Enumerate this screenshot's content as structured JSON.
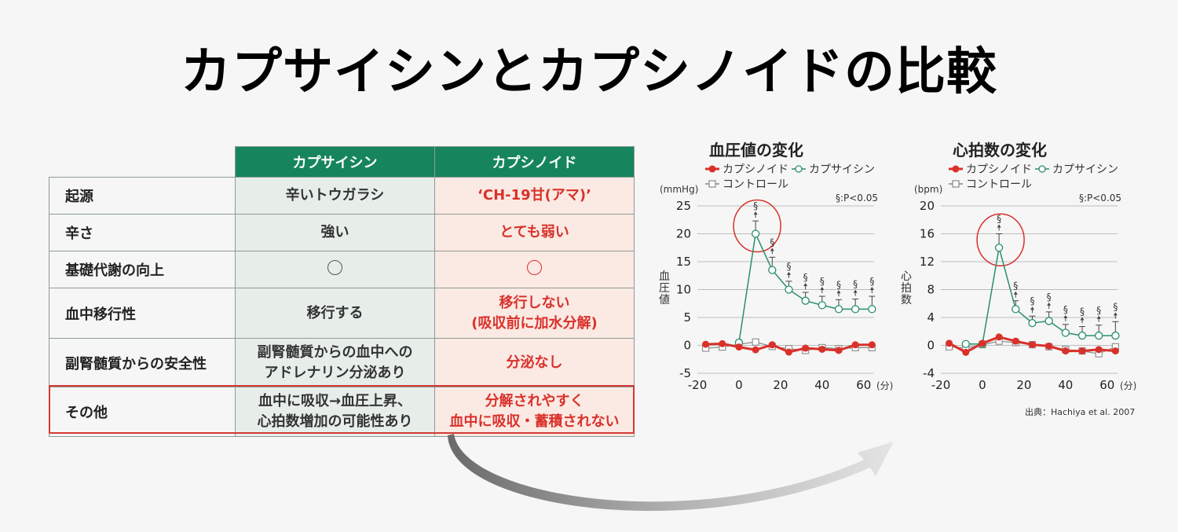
{
  "title": "カプサイシンとカプシノイドの比較",
  "table": {
    "headers": [
      "カプサイシン",
      "カプシノイド"
    ],
    "rows": [
      {
        "label": "起源",
        "c1": [
          "辛いトウガラシ"
        ],
        "c2": [
          "‘CH-19甘(アマ)’"
        ]
      },
      {
        "label": "辛さ",
        "c1": [
          "強い"
        ],
        "c2": [
          "とても弱い"
        ]
      },
      {
        "label": "基礎代謝の向上",
        "c1": [
          "○"
        ],
        "c2": [
          "○"
        ]
      },
      {
        "label": "血中移行性",
        "c1": [
          "移行する"
        ],
        "c2": [
          "移行しない",
          "(吸収前に加水分解)"
        ]
      },
      {
        "label": "副腎髄質からの安全性",
        "c1": [
          "副腎髄質からの血中への",
          "アドレナリン分泌あり"
        ],
        "c2": [
          "分泌なし"
        ]
      },
      {
        "label": "その他",
        "c1": [
          "血中に吸収→血圧上昇、",
          "心拍数増加の可能性あり"
        ],
        "c2": [
          "分解されやすく",
          "血中に吸収・蓄積されない"
        ]
      }
    ]
  },
  "source": "出典：Hachiya et al. 2007",
  "colors": {
    "capsinoid": "#d9312a",
    "capsaicin": "#2a8f6a",
    "control": "#888888",
    "header": "#16855d"
  },
  "chart_data": [
    {
      "type": "line",
      "title": "血圧値の変化",
      "ylabel": "血圧値",
      "yunit": "(mmHg)",
      "xunit": "(分)",
      "note": "§:P<0.05",
      "ylim": [
        -5,
        25
      ],
      "yticks": [
        -5,
        0,
        5,
        10,
        15,
        20,
        25
      ],
      "xlim": [
        -20,
        65
      ],
      "xticks": [
        -20,
        0,
        20,
        40,
        60
      ],
      "grid": true,
      "legend": [
        "カプシノイド",
        "カプサイシン",
        "コントロール"
      ],
      "series": [
        {
          "name": "カプシノイド",
          "x": [
            -16,
            -8,
            0,
            8,
            16,
            24,
            32,
            40,
            48,
            56,
            64
          ],
          "y": [
            0.2,
            0.3,
            -0.3,
            -0.8,
            0.1,
            -1.2,
            -0.5,
            -0.7,
            -0.9,
            0.1,
            0.1
          ]
        },
        {
          "name": "カプサイシン",
          "x": [
            0,
            8,
            16,
            24,
            32,
            40,
            48,
            56,
            64
          ],
          "y": [
            0.5,
            20,
            13.5,
            10,
            8,
            7.2,
            6.5,
            6.5,
            6.5
          ],
          "err": [
            0,
            2.3,
            2.3,
            1.5,
            1.5,
            1.6,
            1.7,
            1.8,
            2.3
          ],
          "sig": [
            false,
            true,
            true,
            true,
            true,
            true,
            true,
            true,
            true
          ]
        },
        {
          "name": "コントロール",
          "x": [
            -16,
            -8,
            0,
            8,
            16,
            24,
            32,
            40,
            48,
            56,
            64
          ],
          "y": [
            -0.5,
            -0.3,
            0.2,
            0.6,
            -0.2,
            -0.6,
            -0.9,
            -0.4,
            -0.6,
            -0.4,
            -0.4
          ]
        }
      ]
    },
    {
      "type": "line",
      "title": "心拍数の変化",
      "ylabel": "心拍数",
      "yunit": "(bpm)",
      "xunit": "(分)",
      "note": "§:P<0.05",
      "ylim": [
        -4,
        20
      ],
      "yticks": [
        -4,
        0,
        4,
        8,
        12,
        16,
        20
      ],
      "xlim": [
        -20,
        65
      ],
      "xticks": [
        -20,
        0,
        20,
        40,
        60
      ],
      "grid": true,
      "legend": [
        "カプシノイド",
        "カプサイシン",
        "コントロール"
      ],
      "series": [
        {
          "name": "カプシノイド",
          "x": [
            -16,
            -8,
            0,
            8,
            16,
            24,
            32,
            40,
            48,
            56,
            64
          ],
          "y": [
            0.3,
            -1,
            0.3,
            1.2,
            0.6,
            0.1,
            -0.1,
            -0.8,
            -0.8,
            -0.6,
            -0.8
          ]
        },
        {
          "name": "カプサイシン",
          "x": [
            -8,
            0,
            8,
            16,
            24,
            32,
            40,
            48,
            56,
            64
          ],
          "y": [
            0.2,
            0.2,
            14,
            5.2,
            3.2,
            3.5,
            1.8,
            1.4,
            1.4,
            1.4
          ],
          "err": [
            0,
            0,
            2,
            1.2,
            1,
            1.3,
            1.2,
            1.3,
            1.5,
            2
          ],
          "sig": [
            false,
            false,
            true,
            true,
            true,
            true,
            true,
            true,
            true,
            true
          ]
        },
        {
          "name": "コントロール",
          "x": [
            -16,
            -8,
            0,
            8,
            16,
            24,
            32,
            40,
            48,
            56,
            64
          ],
          "y": [
            -0.2,
            -0.4,
            0.1,
            0.6,
            0.4,
            0.1,
            -0.2,
            -0.6,
            -0.8,
            -1.2,
            -0.2
          ]
        }
      ]
    }
  ]
}
